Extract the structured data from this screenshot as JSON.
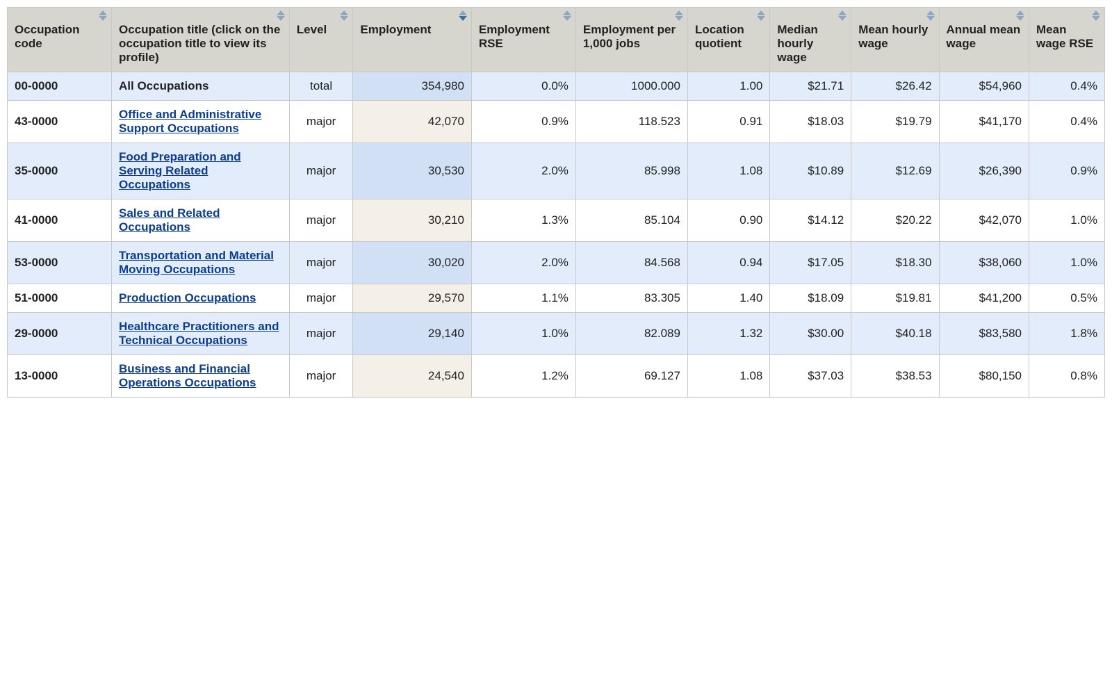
{
  "table": {
    "type": "table",
    "colors": {
      "header_bg": "#d6d6ce",
      "border": "#c8c8c8",
      "row_even_bg": "#e2ecfb",
      "row_odd_bg": "#ffffff",
      "sorted_even_bg": "#d2e0f5",
      "sorted_odd_bg": "#f4f0e7",
      "link": "#0b3d91",
      "text": "#222222",
      "sort_arrow_inactive": "#8fa6c2",
      "sort_arrow_active": "#3b6ea5"
    },
    "sorted_column_index": 3,
    "sorted_direction": "desc",
    "columns": [
      {
        "key": "code",
        "label": "Occupation code",
        "align": "left",
        "width_pct": 9.5,
        "sortable": true,
        "colclass": "c-code"
      },
      {
        "key": "title",
        "label": "Occupation title (click on the occupation title to view its profile)",
        "align": "left",
        "width_pct": 16.2,
        "sortable": true,
        "colclass": "c-title"
      },
      {
        "key": "level",
        "label": "Level",
        "align": "center",
        "width_pct": 5.8,
        "sortable": true,
        "colclass": "c-level"
      },
      {
        "key": "emp",
        "label": "Employment",
        "align": "right",
        "width_pct": 10.8,
        "sortable": true,
        "colclass": "c-emp"
      },
      {
        "key": "rse",
        "label": "Employment RSE",
        "align": "right",
        "width_pct": 9.5,
        "sortable": true,
        "colclass": "c-rse"
      },
      {
        "key": "per1k",
        "label": "Employment per 1,000 jobs",
        "align": "right",
        "width_pct": 10.2,
        "sortable": true,
        "colclass": "c-per1k"
      },
      {
        "key": "loc",
        "label": "Location quotient",
        "align": "right",
        "width_pct": 7.5,
        "sortable": true,
        "colclass": "c-loc"
      },
      {
        "key": "medh",
        "label": "Median hourly wage",
        "align": "right",
        "width_pct": 7.4,
        "sortable": true,
        "colclass": "c-medh"
      },
      {
        "key": "meanh",
        "label": "Mean hourly wage",
        "align": "right",
        "width_pct": 8.0,
        "sortable": true,
        "colclass": "c-meanh"
      },
      {
        "key": "annual",
        "label": "Annual mean wage",
        "align": "right",
        "width_pct": 8.2,
        "sortable": true,
        "colclass": "c-annual"
      },
      {
        "key": "wrse",
        "label": "Mean wage RSE",
        "align": "right",
        "width_pct": 6.9,
        "sortable": true,
        "colclass": "c-wrse"
      }
    ],
    "rows": [
      {
        "code": "00-0000",
        "title": "All Occupations",
        "title_is_link": false,
        "level": "total",
        "emp": "354,980",
        "rse": "0.0%",
        "per1k": "1000.000",
        "loc": "1.00",
        "medh": "$21.71",
        "meanh": "$26.42",
        "annual": "$54,960",
        "wrse": "0.4%"
      },
      {
        "code": "43-0000",
        "title": "Office and Administrative Support Occupations",
        "title_is_link": true,
        "level": "major",
        "emp": "42,070",
        "rse": "0.9%",
        "per1k": "118.523",
        "loc": "0.91",
        "medh": "$18.03",
        "meanh": "$19.79",
        "annual": "$41,170",
        "wrse": "0.4%"
      },
      {
        "code": "35-0000",
        "title": "Food Preparation and Serving Related Occupations",
        "title_is_link": true,
        "level": "major",
        "emp": "30,530",
        "rse": "2.0%",
        "per1k": "85.998",
        "loc": "1.08",
        "medh": "$10.89",
        "meanh": "$12.69",
        "annual": "$26,390",
        "wrse": "0.9%"
      },
      {
        "code": "41-0000",
        "title": "Sales and Related Occupations",
        "title_is_link": true,
        "level": "major",
        "emp": "30,210",
        "rse": "1.3%",
        "per1k": "85.104",
        "loc": "0.90",
        "medh": "$14.12",
        "meanh": "$20.22",
        "annual": "$42,070",
        "wrse": "1.0%"
      },
      {
        "code": "53-0000",
        "title": "Transportation and Material Moving Occupations",
        "title_is_link": true,
        "level": "major",
        "emp": "30,020",
        "rse": "2.0%",
        "per1k": "84.568",
        "loc": "0.94",
        "medh": "$17.05",
        "meanh": "$18.30",
        "annual": "$38,060",
        "wrse": "1.0%"
      },
      {
        "code": "51-0000",
        "title": "Production Occupations",
        "title_is_link": true,
        "level": "major",
        "emp": "29,570",
        "rse": "1.1%",
        "per1k": "83.305",
        "loc": "1.40",
        "medh": "$18.09",
        "meanh": "$19.81",
        "annual": "$41,200",
        "wrse": "0.5%"
      },
      {
        "code": "29-0000",
        "title": "Healthcare Practitioners and Technical Occupations",
        "title_is_link": true,
        "level": "major",
        "emp": "29,140",
        "rse": "1.0%",
        "per1k": "82.089",
        "loc": "1.32",
        "medh": "$30.00",
        "meanh": "$40.18",
        "annual": "$83,580",
        "wrse": "1.8%"
      },
      {
        "code": "13-0000",
        "title": "Business and Financial Operations Occupations",
        "title_is_link": true,
        "level": "major",
        "emp": "24,540",
        "rse": "1.2%",
        "per1k": "69.127",
        "loc": "1.08",
        "medh": "$37.03",
        "meanh": "$38.53",
        "annual": "$80,150",
        "wrse": "0.8%"
      }
    ]
  }
}
